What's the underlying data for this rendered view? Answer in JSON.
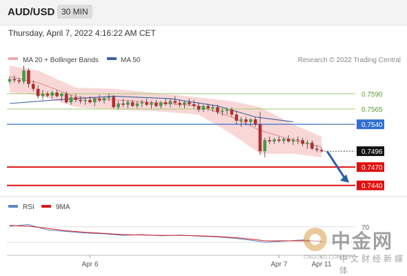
{
  "header": {
    "symbol": "AUD/USD",
    "timeframe": "30 MIN"
  },
  "datetime": "Thursday, April 7, 2022 4:16:22 AM CET",
  "credit": "Research © 2022 Trading Central",
  "watermark": {
    "brand": "中金网",
    "url": "CNGOLD.COM.CN",
    "sub": "中文财经新媒体"
  },
  "colors": {
    "bollinger": "#f4b6b6",
    "ma20": "#e08a8a",
    "ma50": "#3a5fa0",
    "green_level": "#9acd6b",
    "blue_level": "#2f6fd1",
    "red_level": "#e01010",
    "rsi": "#5b86c8",
    "rsi_ma": "#d41c1c",
    "arrow": "#2b5fa8"
  },
  "chart_data": [
    {
      "type": "candlestick",
      "legend": [
        {
          "name": "MA 20 + Bollinger Bands",
          "color": "#f4a6a6"
        },
        {
          "name": "MA 50",
          "color": "#3a5fa0"
        }
      ],
      "x_tick_labels": [
        "Apr 6",
        "Apr 7",
        "Apr 11"
      ],
      "ylim": [
        0.7425,
        0.7635
      ],
      "levels": [
        {
          "label": "0.7590",
          "value": 0.759,
          "kind": "resistance"
        },
        {
          "label": "0.7565",
          "value": 0.7565,
          "kind": "resistance"
        },
        {
          "label": "0.7540",
          "value": 0.754,
          "kind": "pivot"
        },
        {
          "label": "0.7496",
          "value": 0.7496,
          "kind": "last"
        },
        {
          "label": "0.7470",
          "value": 0.747,
          "kind": "support"
        },
        {
          "label": "0.7440",
          "value": 0.744,
          "kind": "support"
        }
      ],
      "candles": [
        [
          0.761,
          0.7618,
          0.7606,
          0.7614
        ],
        [
          0.7614,
          0.762,
          0.7608,
          0.7612
        ],
        [
          0.7612,
          0.7616,
          0.7606,
          0.761
        ],
        [
          0.761,
          0.7636,
          0.7606,
          0.7628
        ],
        [
          0.7628,
          0.7632,
          0.76,
          0.7606
        ],
        [
          0.7606,
          0.7612,
          0.7594,
          0.7598
        ],
        [
          0.7598,
          0.7604,
          0.7582,
          0.7586
        ],
        [
          0.7586,
          0.7596,
          0.758,
          0.759
        ],
        [
          0.759,
          0.7594,
          0.7584,
          0.7587
        ],
        [
          0.7587,
          0.7595,
          0.7582,
          0.7592
        ],
        [
          0.7592,
          0.7596,
          0.7584,
          0.7586
        ],
        [
          0.7586,
          0.7592,
          0.7578,
          0.759
        ],
        [
          0.759,
          0.7594,
          0.7574,
          0.7576
        ],
        [
          0.7576,
          0.7588,
          0.7572,
          0.7584
        ],
        [
          0.7584,
          0.759,
          0.7576,
          0.758
        ],
        [
          0.758,
          0.7586,
          0.7574,
          0.7578
        ],
        [
          0.7578,
          0.7584,
          0.7572,
          0.758
        ],
        [
          0.758,
          0.7586,
          0.7574,
          0.7576
        ],
        [
          0.7576,
          0.7584,
          0.757,
          0.7582
        ],
        [
          0.7582,
          0.7588,
          0.7576,
          0.7579
        ],
        [
          0.7579,
          0.7585,
          0.7574,
          0.7583
        ],
        [
          0.7583,
          0.759,
          0.7578,
          0.7585
        ],
        [
          0.7585,
          0.7588,
          0.7566,
          0.7568
        ],
        [
          0.7568,
          0.7578,
          0.7564,
          0.7574
        ],
        [
          0.7574,
          0.7582,
          0.7568,
          0.7572
        ],
        [
          0.7572,
          0.758,
          0.7566,
          0.7576
        ],
        [
          0.7576,
          0.758,
          0.7568,
          0.757
        ],
        [
          0.757,
          0.7578,
          0.7566,
          0.7574
        ],
        [
          0.7574,
          0.758,
          0.7568,
          0.7576
        ],
        [
          0.7576,
          0.7582,
          0.757,
          0.7572
        ],
        [
          0.7572,
          0.7578,
          0.7566,
          0.7575
        ],
        [
          0.7575,
          0.758,
          0.7568,
          0.757
        ],
        [
          0.757,
          0.7578,
          0.7566,
          0.7576
        ],
        [
          0.7576,
          0.7582,
          0.757,
          0.7573
        ],
        [
          0.7573,
          0.7582,
          0.7568,
          0.7578
        ],
        [
          0.7578,
          0.7586,
          0.7572,
          0.7575
        ],
        [
          0.7575,
          0.758,
          0.7568,
          0.7572
        ],
        [
          0.7572,
          0.7578,
          0.7566,
          0.7576
        ],
        [
          0.7576,
          0.7582,
          0.757,
          0.7573
        ],
        [
          0.7573,
          0.758,
          0.7566,
          0.757
        ],
        [
          0.757,
          0.7576,
          0.756,
          0.7564
        ],
        [
          0.7564,
          0.7572,
          0.756,
          0.757
        ],
        [
          0.757,
          0.7574,
          0.7562,
          0.7566
        ],
        [
          0.7566,
          0.7572,
          0.756,
          0.7568
        ],
        [
          0.7568,
          0.7572,
          0.7556,
          0.756
        ],
        [
          0.756,
          0.7566,
          0.7554,
          0.7562
        ],
        [
          0.7562,
          0.7568,
          0.7556,
          0.7564
        ],
        [
          0.7564,
          0.7568,
          0.7552,
          0.7556
        ],
        [
          0.7556,
          0.7562,
          0.754,
          0.7546
        ],
        [
          0.7546,
          0.7552,
          0.7536,
          0.7548
        ],
        [
          0.7548,
          0.7552,
          0.7538,
          0.7544
        ],
        [
          0.7544,
          0.755,
          0.7538,
          0.7548
        ],
        [
          0.7548,
          0.7552,
          0.7536,
          0.754
        ],
        [
          0.754,
          0.756,
          0.749,
          0.7496
        ],
        [
          0.7496,
          0.7518,
          0.7486,
          0.7514
        ],
        [
          0.7514,
          0.752,
          0.7508,
          0.7512
        ],
        [
          0.7512,
          0.7518,
          0.7508,
          0.7515
        ],
        [
          0.7515,
          0.752,
          0.751,
          0.7513
        ],
        [
          0.7513,
          0.7518,
          0.7508,
          0.7516
        ],
        [
          0.7516,
          0.7522,
          0.751,
          0.7512
        ],
        [
          0.7512,
          0.7518,
          0.7506,
          0.7515
        ],
        [
          0.7515,
          0.752,
          0.7508,
          0.7514
        ],
        [
          0.7514,
          0.7518,
          0.7504,
          0.7508
        ],
        [
          0.7508,
          0.7514,
          0.75,
          0.751
        ],
        [
          0.751,
          0.7514,
          0.7498,
          0.75
        ],
        [
          0.75,
          0.7506,
          0.7494,
          0.7498
        ],
        [
          0.7498,
          0.7502,
          0.7494,
          0.7496
        ]
      ],
      "ma50": [
        [
          0,
          0.7574
        ],
        [
          10,
          0.758
        ],
        [
          22,
          0.7586
        ],
        [
          34,
          0.7582
        ],
        [
          44,
          0.757
        ],
        [
          52,
          0.7552
        ],
        [
          60,
          0.7544
        ]
      ],
      "bollinger_upper": [
        [
          0,
          0.7636
        ],
        [
          6,
          0.7628
        ],
        [
          14,
          0.76
        ],
        [
          22,
          0.7598
        ],
        [
          30,
          0.7592
        ],
        [
          40,
          0.7584
        ],
        [
          47,
          0.7578
        ],
        [
          53,
          0.7568
        ],
        [
          60,
          0.754
        ],
        [
          66,
          0.752
        ]
      ],
      "bollinger_lower": [
        [
          0,
          0.7592
        ],
        [
          6,
          0.7588
        ],
        [
          14,
          0.7568
        ],
        [
          22,
          0.7564
        ],
        [
          30,
          0.7562
        ],
        [
          40,
          0.7556
        ],
        [
          47,
          0.7524
        ],
        [
          53,
          0.7492
        ],
        [
          60,
          0.7492
        ],
        [
          66,
          0.7486
        ]
      ],
      "ma20": [
        [
          0,
          0.7618
        ],
        [
          6,
          0.7608
        ],
        [
          14,
          0.7585
        ],
        [
          22,
          0.758
        ],
        [
          30,
          0.7576
        ],
        [
          40,
          0.757
        ],
        [
          47,
          0.7552
        ],
        [
          53,
          0.753
        ],
        [
          60,
          0.7514
        ],
        [
          66,
          0.7503
        ]
      ],
      "forecast": {
        "from": 0.7496,
        "to": 0.744
      }
    },
    {
      "type": "line",
      "legend": [
        {
          "name": "RSI",
          "color": "#5b86c8"
        },
        {
          "name": "9MA",
          "color": "#d41c1c"
        }
      ],
      "ylim": [
        0,
        100
      ],
      "y_tick_labels": [
        "70"
      ],
      "rsi": [
        [
          0,
          72
        ],
        [
          4,
          76
        ],
        [
          8,
          62
        ],
        [
          12,
          58
        ],
        [
          16,
          54
        ],
        [
          20,
          52
        ],
        [
          24,
          48
        ],
        [
          28,
          50
        ],
        [
          32,
          47
        ],
        [
          36,
          49
        ],
        [
          40,
          46
        ],
        [
          44,
          44
        ],
        [
          48,
          40
        ],
        [
          52,
          34
        ],
        [
          54,
          30
        ],
        [
          58,
          33
        ],
        [
          62,
          36
        ],
        [
          66,
          32
        ]
      ],
      "ma9": [
        [
          0,
          74
        ],
        [
          4,
          72
        ],
        [
          8,
          66
        ],
        [
          12,
          60
        ],
        [
          16,
          56
        ],
        [
          20,
          53
        ],
        [
          24,
          50
        ],
        [
          28,
          49
        ],
        [
          32,
          48
        ],
        [
          36,
          48
        ],
        [
          40,
          47
        ],
        [
          44,
          45
        ],
        [
          48,
          42
        ],
        [
          52,
          37
        ],
        [
          54,
          34
        ],
        [
          58,
          34
        ],
        [
          62,
          34
        ],
        [
          66,
          33
        ]
      ]
    }
  ]
}
